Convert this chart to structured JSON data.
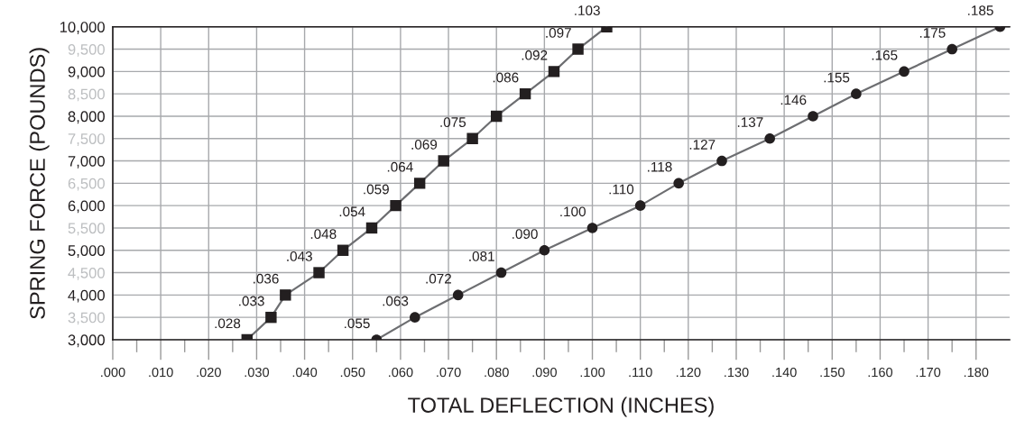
{
  "chart_data": {
    "type": "line",
    "xlabel": "TOTAL DEFLECTION (INCHES)",
    "ylabel": "SPRING FORCE (POUNDS)",
    "xlim": [
      0,
      0.187
    ],
    "ylim": [
      3000,
      10000
    ],
    "xticks": [
      {
        "value": 0,
        "label": ".000"
      },
      {
        "value": 0.01,
        "label": ".010"
      },
      {
        "value": 0.02,
        "label": ".020"
      },
      {
        "value": 0.03,
        "label": ".030"
      },
      {
        "value": 0.04,
        "label": ".040"
      },
      {
        "value": 0.05,
        "label": ".050"
      },
      {
        "value": 0.06,
        "label": ".060"
      },
      {
        "value": 0.07,
        "label": ".070"
      },
      {
        "value": 0.08,
        "label": ".080"
      },
      {
        "value": 0.09,
        "label": ".090"
      },
      {
        "value": 0.1,
        "label": ".100"
      },
      {
        "value": 0.11,
        "label": ".110"
      },
      {
        "value": 0.12,
        "label": ".120"
      },
      {
        "value": 0.13,
        "label": ".130"
      },
      {
        "value": 0.14,
        "label": ".140"
      },
      {
        "value": 0.15,
        "label": ".150"
      },
      {
        "value": 0.16,
        "label": ".160"
      },
      {
        "value": 0.17,
        "label": ".170"
      },
      {
        "value": 0.18,
        "label": ".180"
      }
    ],
    "yticks": [
      {
        "value": 3000,
        "label": "3,000"
      },
      {
        "value": 3500,
        "label": "3,500"
      },
      {
        "value": 4000,
        "label": "4,000"
      },
      {
        "value": 4500,
        "label": "4,500"
      },
      {
        "value": 5000,
        "label": "5,000"
      },
      {
        "value": 5500,
        "label": "5,500"
      },
      {
        "value": 6000,
        "label": "6,000"
      },
      {
        "value": 6500,
        "label": "6,500"
      },
      {
        "value": 7000,
        "label": "7,000"
      },
      {
        "value": 7500,
        "label": "7,500"
      },
      {
        "value": 8000,
        "label": "8,000"
      },
      {
        "value": 8500,
        "label": "8,500"
      },
      {
        "value": 9000,
        "label": "9,000"
      },
      {
        "value": 9500,
        "label": "9,500"
      },
      {
        "value": 10000,
        "label": "10,000"
      }
    ],
    "grid": true,
    "legend": false,
    "line_style": "solid",
    "series": [
      {
        "color": "#231f20",
        "marker": "square",
        "x": [
          0.028,
          0.033,
          0.036,
          0.043,
          0.048,
          0.054,
          0.059,
          0.064,
          0.069,
          0.075,
          0.08,
          0.086,
          0.092,
          0.097,
          0.103
        ],
        "values": [
          3000,
          3500,
          4000,
          4500,
          5000,
          5500,
          6000,
          6500,
          7000,
          7500,
          8000,
          8500,
          9000,
          9500,
          10000
        ]
      },
      {
        "color": "#231f20",
        "marker": "circle",
        "x": [
          0.055,
          0.063,
          0.072,
          0.081,
          0.09,
          0.1,
          0.11,
          0.118,
          0.127,
          0.137,
          0.146,
          0.155,
          0.165,
          0.175,
          0.185
        ],
        "values": [
          3000,
          3500,
          4000,
          4500,
          5000,
          5500,
          6000,
          6500,
          7000,
          7500,
          8000,
          8500,
          9000,
          9500,
          10000
        ]
      }
    ],
    "annotations": [
      {
        "text": ".028",
        "x": 0.028,
        "y": 3000
      },
      {
        "text": ".033",
        "x": 0.033,
        "y": 3500
      },
      {
        "text": ".036",
        "x": 0.036,
        "y": 4000
      },
      {
        "text": ".043",
        "x": 0.043,
        "y": 4500
      },
      {
        "text": ".048",
        "x": 0.048,
        "y": 5000
      },
      {
        "text": ".054",
        "x": 0.054,
        "y": 5500
      },
      {
        "text": ".059",
        "x": 0.059,
        "y": 6000
      },
      {
        "text": ".064",
        "x": 0.064,
        "y": 6500
      },
      {
        "text": ".069",
        "x": 0.069,
        "y": 7000
      },
      {
        "text": ".075",
        "x": 0.075,
        "y": 7500
      },
      {
        "text": ".086",
        "x": 0.086,
        "y": 8500
      },
      {
        "text": ".092",
        "x": 0.092,
        "y": 9000
      },
      {
        "text": ".097",
        "x": 0.097,
        "y": 9500
      },
      {
        "text": ".103",
        "x": 0.103,
        "y": 10000
      },
      {
        "text": ".055",
        "x": 0.055,
        "y": 3000
      },
      {
        "text": ".063",
        "x": 0.063,
        "y": 3500
      },
      {
        "text": ".072",
        "x": 0.072,
        "y": 4000
      },
      {
        "text": ".081",
        "x": 0.081,
        "y": 4500
      },
      {
        "text": ".090",
        "x": 0.09,
        "y": 5000
      },
      {
        "text": ".100",
        "x": 0.1,
        "y": 5500
      },
      {
        "text": ".110",
        "x": 0.11,
        "y": 6000
      },
      {
        "text": ".118",
        "x": 0.118,
        "y": 6500
      },
      {
        "text": ".127",
        "x": 0.127,
        "y": 7000
      },
      {
        "text": ".137",
        "x": 0.137,
        "y": 7500
      },
      {
        "text": ".146",
        "x": 0.146,
        "y": 8000
      },
      {
        "text": ".155",
        "x": 0.155,
        "y": 8500
      },
      {
        "text": ".165",
        "x": 0.165,
        "y": 9000
      },
      {
        "text": ".175",
        "x": 0.175,
        "y": 9500
      },
      {
        "text": ".185",
        "x": 0.185,
        "y": 10000
      }
    ]
  }
}
